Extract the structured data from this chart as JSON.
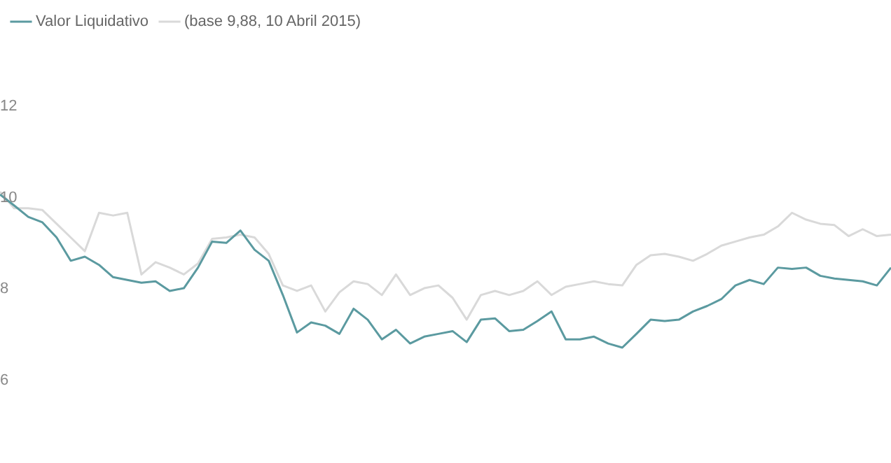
{
  "chart_data": {
    "type": "line",
    "categories": [
      null,
      null,
      null,
      null,
      null,
      null,
      null,
      null,
      null,
      null,
      null,
      null,
      null,
      null,
      null,
      null,
      null,
      null,
      null,
      null,
      null,
      null,
      null,
      null,
      null,
      null,
      null,
      null,
      null,
      null,
      null,
      null,
      null,
      null,
      null,
      null,
      null,
      null,
      null,
      null,
      null,
      null,
      null,
      null,
      null,
      null,
      null,
      null,
      null,
      null,
      null,
      null,
      null,
      null,
      null,
      null,
      null,
      null,
      null,
      null,
      null,
      null,
      null,
      null
    ],
    "series": [
      {
        "name": "Valor Liquidativo",
        "color": "#5b9aa0",
        "values": [
          10.07,
          9.83,
          9.58,
          9.46,
          9.13,
          8.62,
          8.71,
          8.53,
          8.26,
          8.2,
          8.14,
          8.17,
          7.96,
          8.02,
          8.47,
          9.04,
          9.01,
          9.28,
          8.86,
          8.62,
          7.87,
          7.05,
          7.27,
          7.2,
          7.02,
          7.57,
          7.33,
          6.9,
          7.11,
          6.81,
          6.96,
          7.02,
          7.08,
          6.84,
          7.33,
          7.36,
          7.08,
          7.11,
          7.3,
          7.51,
          6.9,
          6.9,
          6.96,
          6.81,
          6.72,
          7.02,
          7.33,
          7.3,
          7.33,
          7.51,
          7.63,
          7.78,
          8.08,
          8.2,
          8.11,
          8.47,
          8.44,
          8.47,
          8.29,
          8.23,
          8.2,
          8.17,
          8.08,
          8.47
        ]
      },
      {
        "name": "(base 9,88, 10 Abril 2015)",
        "color": "#d9d9d9",
        "values": [
          10.13,
          9.77,
          9.77,
          9.73,
          9.43,
          9.13,
          8.83,
          9.67,
          9.61,
          9.67,
          8.32,
          8.59,
          8.47,
          8.32,
          8.56,
          9.1,
          9.13,
          9.19,
          9.13,
          8.77,
          8.08,
          7.96,
          8.08,
          7.51,
          7.93,
          8.17,
          8.11,
          7.87,
          8.32,
          7.87,
          8.02,
          8.08,
          7.81,
          7.33,
          7.87,
          7.96,
          7.87,
          7.96,
          8.17,
          7.87,
          8.05,
          8.11,
          8.17,
          8.11,
          8.08,
          8.53,
          8.74,
          8.77,
          8.71,
          8.62,
          8.77,
          8.95,
          9.04,
          9.13,
          9.19,
          9.37,
          9.67,
          9.52,
          9.43,
          9.4,
          9.16,
          9.31,
          9.16,
          9.19
        ]
      }
    ],
    "ylim": [
      6,
      12
    ],
    "yticks": [
      6,
      8,
      10,
      12
    ],
    "legend": "top left",
    "marker": "none",
    "tick_labels": "y"
  }
}
